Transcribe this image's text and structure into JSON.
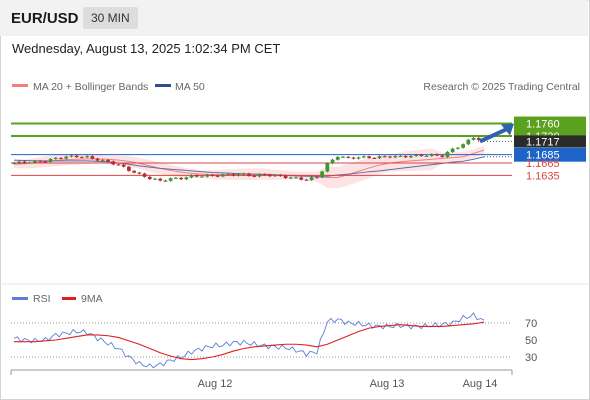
{
  "header": {
    "pair": "EUR/USD",
    "timeframe": "30 MIN"
  },
  "datetime": "Wednesday, August 13, 2025 1:02:34 PM CET",
  "legend": {
    "ma20": "MA 20 + Bollinger Bands",
    "ma50": "MA 50",
    "source": "Research © 2025 Trading Central",
    "rsi": "RSI",
    "ma9": "9MA"
  },
  "colors": {
    "resistance": "#5ba01e",
    "support": "#d94444",
    "pivot": "#1e64c8",
    "current": "#2b2b2b",
    "arrow": "#2e62ae",
    "bollinger": "#fde0e0",
    "ma20": "#f08080",
    "ma50": "#5a6ea8"
  },
  "chart_data": [
    {
      "type": "line",
      "title": "EUR/USD 30 MIN",
      "x_ticks": [
        "Aug 12",
        "Aug 13",
        "Aug 14"
      ],
      "ylim": [
        1.16,
        1.178
      ],
      "levels": {
        "resistance": [
          "1.1760",
          "1.1730"
        ],
        "current": "1.1717",
        "pivot": "1.1685",
        "support": [
          "1.1665",
          "1.1635"
        ]
      },
      "series": [
        {
          "name": "MA 20 + Bollinger Bands",
          "values": [
            1.1662,
            1.1663,
            1.1665,
            1.1668,
            1.1671,
            1.1673,
            1.1674,
            1.1675,
            1.1675,
            1.1674,
            1.1672,
            1.1669,
            1.1664,
            1.1658,
            1.1652,
            1.1647,
            1.1643,
            1.164,
            1.1638,
            1.1637,
            1.1637,
            1.1637,
            1.1638,
            1.1638,
            1.1638,
            1.1637,
            1.1636,
            1.1635,
            1.1634,
            1.1632,
            1.163,
            1.163,
            1.1637,
            1.1645,
            1.1653,
            1.166,
            1.1665,
            1.1668,
            1.167,
            1.1672,
            1.1674,
            1.1676,
            1.1678,
            1.168,
            1.1688,
            1.1696
          ]
        },
        {
          "name": "MA 50",
          "values": [
            1.1672,
            1.1671,
            1.167,
            1.167,
            1.167,
            1.167,
            1.167,
            1.167,
            1.1669,
            1.1668,
            1.1665,
            1.1662,
            1.1658,
            1.1655,
            1.1652,
            1.165,
            1.1648,
            1.1646,
            1.1644,
            1.1642,
            1.1641,
            1.164,
            1.1639,
            1.1638,
            1.1637,
            1.1636,
            1.1635,
            1.1634,
            1.1633,
            1.1633,
            1.1633,
            1.1636,
            1.1638,
            1.1641,
            1.1644,
            1.1646,
            1.1649,
            1.1652,
            1.1655,
            1.1658,
            1.1661,
            1.1664,
            1.1667,
            1.1669,
            1.1674,
            1.168
          ]
        },
        {
          "name": "Price",
          "values": [
            1.1665,
            1.1667,
            1.1668,
            1.167,
            1.1676,
            1.168,
            1.1681,
            1.1679,
            1.1673,
            1.1668,
            1.166,
            1.1648,
            1.1637,
            1.1628,
            1.1622,
            1.1627,
            1.1628,
            1.1633,
            1.1634,
            1.1634,
            1.1636,
            1.1637,
            1.1637,
            1.1634,
            1.1637,
            1.1634,
            1.1631,
            1.1628,
            1.1625,
            1.1631,
            1.1662,
            1.1682,
            1.1676,
            1.1679,
            1.1678,
            1.1679,
            1.1681,
            1.168,
            1.1682,
            1.1683,
            1.1684,
            1.1682,
            1.1698,
            1.171,
            1.1727,
            1.1717
          ]
        }
      ]
    },
    {
      "type": "line",
      "title": "RSI",
      "ylim": [
        20,
        80
      ],
      "y_ticks": [
        "70",
        "50",
        "30"
      ],
      "series": [
        {
          "name": "RSI",
          "values": [
            52,
            50,
            49,
            50,
            56,
            58,
            60,
            59,
            52,
            46,
            40,
            30,
            22,
            19,
            21,
            26,
            30,
            36,
            40,
            43,
            44,
            47,
            47,
            45,
            43,
            42,
            41,
            38,
            34,
            36,
            72,
            74,
            70,
            69,
            67,
            66,
            66,
            67,
            66,
            66,
            67,
            68,
            70,
            76,
            79,
            72
          ]
        },
        {
          "name": "9MA",
          "values": [
            48,
            48,
            48,
            49,
            50,
            52,
            54,
            56,
            56,
            55,
            53,
            49,
            45,
            40,
            35,
            31,
            28,
            27,
            28,
            30,
            33,
            37,
            40,
            42,
            43,
            44,
            45,
            45,
            44,
            42,
            45,
            50,
            55,
            60,
            64,
            66,
            67,
            68,
            67,
            66,
            66,
            66,
            67,
            68,
            69,
            71
          ]
        }
      ]
    }
  ]
}
